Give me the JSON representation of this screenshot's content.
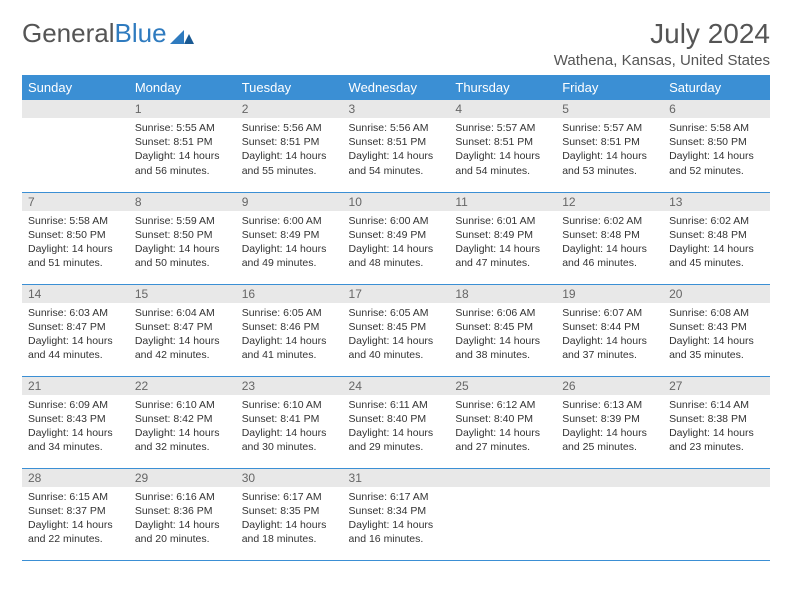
{
  "brand": {
    "part1": "General",
    "part2": "Blue"
  },
  "title": "July 2024",
  "location": "Wathena, Kansas, United States",
  "colors": {
    "header_bg": "#3b8fd4",
    "header_text": "#ffffff",
    "daynum_bg": "#e8e8e8",
    "daynum_text": "#666666",
    "body_text": "#333333",
    "title_text": "#555555",
    "row_border": "#3b8fd4",
    "page_bg": "#ffffff"
  },
  "typography": {
    "title_fontsize": 28,
    "location_fontsize": 15,
    "dayheader_fontsize": 13,
    "daynum_fontsize": 12,
    "cell_fontsize": 10.5
  },
  "day_headers": [
    "Sunday",
    "Monday",
    "Tuesday",
    "Wednesday",
    "Thursday",
    "Friday",
    "Saturday"
  ],
  "weeks": [
    [
      {
        "n": "",
        "lines": []
      },
      {
        "n": "1",
        "lines": [
          "Sunrise: 5:55 AM",
          "Sunset: 8:51 PM",
          "Daylight: 14 hours",
          "and 56 minutes."
        ]
      },
      {
        "n": "2",
        "lines": [
          "Sunrise: 5:56 AM",
          "Sunset: 8:51 PM",
          "Daylight: 14 hours",
          "and 55 minutes."
        ]
      },
      {
        "n": "3",
        "lines": [
          "Sunrise: 5:56 AM",
          "Sunset: 8:51 PM",
          "Daylight: 14 hours",
          "and 54 minutes."
        ]
      },
      {
        "n": "4",
        "lines": [
          "Sunrise: 5:57 AM",
          "Sunset: 8:51 PM",
          "Daylight: 14 hours",
          "and 54 minutes."
        ]
      },
      {
        "n": "5",
        "lines": [
          "Sunrise: 5:57 AM",
          "Sunset: 8:51 PM",
          "Daylight: 14 hours",
          "and 53 minutes."
        ]
      },
      {
        "n": "6",
        "lines": [
          "Sunrise: 5:58 AM",
          "Sunset: 8:50 PM",
          "Daylight: 14 hours",
          "and 52 minutes."
        ]
      }
    ],
    [
      {
        "n": "7",
        "lines": [
          "Sunrise: 5:58 AM",
          "Sunset: 8:50 PM",
          "Daylight: 14 hours",
          "and 51 minutes."
        ]
      },
      {
        "n": "8",
        "lines": [
          "Sunrise: 5:59 AM",
          "Sunset: 8:50 PM",
          "Daylight: 14 hours",
          "and 50 minutes."
        ]
      },
      {
        "n": "9",
        "lines": [
          "Sunrise: 6:00 AM",
          "Sunset: 8:49 PM",
          "Daylight: 14 hours",
          "and 49 minutes."
        ]
      },
      {
        "n": "10",
        "lines": [
          "Sunrise: 6:00 AM",
          "Sunset: 8:49 PM",
          "Daylight: 14 hours",
          "and 48 minutes."
        ]
      },
      {
        "n": "11",
        "lines": [
          "Sunrise: 6:01 AM",
          "Sunset: 8:49 PM",
          "Daylight: 14 hours",
          "and 47 minutes."
        ]
      },
      {
        "n": "12",
        "lines": [
          "Sunrise: 6:02 AM",
          "Sunset: 8:48 PM",
          "Daylight: 14 hours",
          "and 46 minutes."
        ]
      },
      {
        "n": "13",
        "lines": [
          "Sunrise: 6:02 AM",
          "Sunset: 8:48 PM",
          "Daylight: 14 hours",
          "and 45 minutes."
        ]
      }
    ],
    [
      {
        "n": "14",
        "lines": [
          "Sunrise: 6:03 AM",
          "Sunset: 8:47 PM",
          "Daylight: 14 hours",
          "and 44 minutes."
        ]
      },
      {
        "n": "15",
        "lines": [
          "Sunrise: 6:04 AM",
          "Sunset: 8:47 PM",
          "Daylight: 14 hours",
          "and 42 minutes."
        ]
      },
      {
        "n": "16",
        "lines": [
          "Sunrise: 6:05 AM",
          "Sunset: 8:46 PM",
          "Daylight: 14 hours",
          "and 41 minutes."
        ]
      },
      {
        "n": "17",
        "lines": [
          "Sunrise: 6:05 AM",
          "Sunset: 8:45 PM",
          "Daylight: 14 hours",
          "and 40 minutes."
        ]
      },
      {
        "n": "18",
        "lines": [
          "Sunrise: 6:06 AM",
          "Sunset: 8:45 PM",
          "Daylight: 14 hours",
          "and 38 minutes."
        ]
      },
      {
        "n": "19",
        "lines": [
          "Sunrise: 6:07 AM",
          "Sunset: 8:44 PM",
          "Daylight: 14 hours",
          "and 37 minutes."
        ]
      },
      {
        "n": "20",
        "lines": [
          "Sunrise: 6:08 AM",
          "Sunset: 8:43 PM",
          "Daylight: 14 hours",
          "and 35 minutes."
        ]
      }
    ],
    [
      {
        "n": "21",
        "lines": [
          "Sunrise: 6:09 AM",
          "Sunset: 8:43 PM",
          "Daylight: 14 hours",
          "and 34 minutes."
        ]
      },
      {
        "n": "22",
        "lines": [
          "Sunrise: 6:10 AM",
          "Sunset: 8:42 PM",
          "Daylight: 14 hours",
          "and 32 minutes."
        ]
      },
      {
        "n": "23",
        "lines": [
          "Sunrise: 6:10 AM",
          "Sunset: 8:41 PM",
          "Daylight: 14 hours",
          "and 30 minutes."
        ]
      },
      {
        "n": "24",
        "lines": [
          "Sunrise: 6:11 AM",
          "Sunset: 8:40 PM",
          "Daylight: 14 hours",
          "and 29 minutes."
        ]
      },
      {
        "n": "25",
        "lines": [
          "Sunrise: 6:12 AM",
          "Sunset: 8:40 PM",
          "Daylight: 14 hours",
          "and 27 minutes."
        ]
      },
      {
        "n": "26",
        "lines": [
          "Sunrise: 6:13 AM",
          "Sunset: 8:39 PM",
          "Daylight: 14 hours",
          "and 25 minutes."
        ]
      },
      {
        "n": "27",
        "lines": [
          "Sunrise: 6:14 AM",
          "Sunset: 8:38 PM",
          "Daylight: 14 hours",
          "and 23 minutes."
        ]
      }
    ],
    [
      {
        "n": "28",
        "lines": [
          "Sunrise: 6:15 AM",
          "Sunset: 8:37 PM",
          "Daylight: 14 hours",
          "and 22 minutes."
        ]
      },
      {
        "n": "29",
        "lines": [
          "Sunrise: 6:16 AM",
          "Sunset: 8:36 PM",
          "Daylight: 14 hours",
          "and 20 minutes."
        ]
      },
      {
        "n": "30",
        "lines": [
          "Sunrise: 6:17 AM",
          "Sunset: 8:35 PM",
          "Daylight: 14 hours",
          "and 18 minutes."
        ]
      },
      {
        "n": "31",
        "lines": [
          "Sunrise: 6:17 AM",
          "Sunset: 8:34 PM",
          "Daylight: 14 hours",
          "and 16 minutes."
        ]
      },
      {
        "n": "",
        "lines": []
      },
      {
        "n": "",
        "lines": []
      },
      {
        "n": "",
        "lines": []
      }
    ]
  ]
}
